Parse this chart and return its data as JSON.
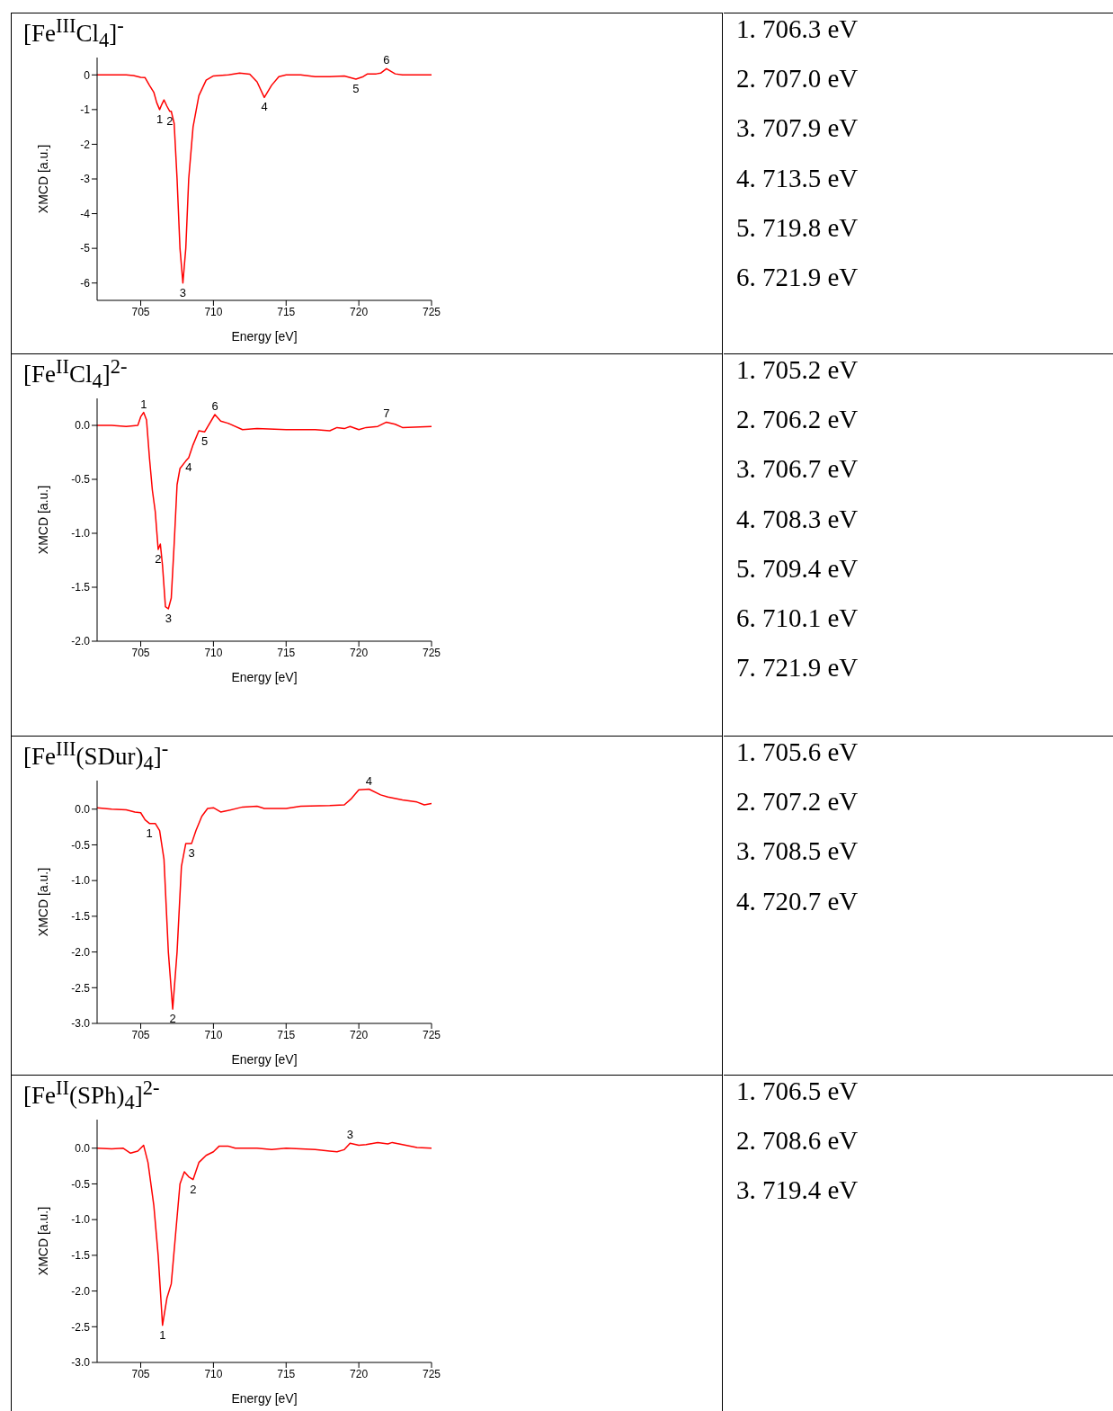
{
  "chart_data": [
    {
      "type": "line",
      "title": "[Fe$^{III}$Cl$_{4}$]$^{-}$",
      "xlabel": "Energy [eV]",
      "ylabel": "XMCD [a.u.]",
      "xlim": [
        702,
        725
      ],
      "xticks": [
        705,
        710,
        715,
        720,
        725
      ],
      "ylim": [
        -6.5,
        0.5
      ],
      "yticks": [
        0,
        -1,
        -2,
        -3,
        -4,
        -5,
        -6
      ],
      "x": [
        702,
        703,
        704,
        704.5,
        705,
        705.3,
        705.6,
        705.9,
        706.1,
        706.3,
        706.45,
        706.6,
        706.8,
        707.0,
        707.1,
        707.3,
        707.5,
        707.7,
        707.9,
        708.1,
        708.3,
        708.6,
        709,
        709.5,
        710,
        711,
        711.8,
        712.5,
        713,
        713.5,
        714,
        714.5,
        715,
        716,
        717,
        718,
        719,
        719.8,
        720.3,
        720.6,
        721.2,
        721.5,
        721.9,
        722.5,
        723,
        725
      ],
      "series": [
        {
          "color": "#ff0000",
          "values": [
            0,
            0,
            0,
            -0.02,
            -0.07,
            -0.08,
            -0.3,
            -0.5,
            -0.8,
            -1.0,
            -0.85,
            -0.72,
            -0.9,
            -1.05,
            -1.05,
            -1.4,
            -3.0,
            -5.0,
            -6.0,
            -5.0,
            -3.0,
            -1.5,
            -0.6,
            -0.15,
            -0.03,
            0,
            0.05,
            0.02,
            -0.2,
            -0.65,
            -0.3,
            -0.05,
            0,
            0,
            -0.05,
            -0.05,
            -0.03,
            -0.12,
            -0.05,
            0.03,
            0.03,
            0.05,
            0.18,
            0.03,
            0,
            0
          ]
        }
      ],
      "annotations": [
        {
          "text": "1",
          "x": 706.3,
          "y": -1.0
        },
        {
          "text": "2",
          "x": 707.0,
          "y": -1.05
        },
        {
          "text": "3",
          "x": 707.9,
          "y": -6.0
        },
        {
          "text": "4",
          "x": 713.5,
          "y": -0.65
        },
        {
          "text": "5",
          "x": 719.8,
          "y": -0.12
        },
        {
          "text": "6",
          "x": 721.9,
          "y": 0.18
        },
        "1. 706.3 eV",
        "2. 707.0 eV",
        "3. 707.9 eV",
        "4. 713.5 eV",
        "5. 719.8 eV",
        "6. 721.9 eV"
      ]
    },
    {
      "type": "line",
      "title": "[Fe$^{II}$Cl$_{4}$]$^{2-}$",
      "xlabel": "Energy [eV]",
      "ylabel": "XMCD [a.u.]",
      "xlim": [
        702,
        725
      ],
      "xticks": [
        705,
        710,
        715,
        720,
        725
      ],
      "ylim": [
        -2,
        0.25
      ],
      "yticks": [
        {
          "value": 0,
          "label": "0.0"
        },
        {
          "value": -0.5,
          "label": "-0.5"
        },
        {
          "value": -1,
          "label": "-1.0"
        },
        {
          "value": -1.5,
          "label": "-1.5"
        },
        {
          "value": -2,
          "label": "-2.0"
        }
      ],
      "x": [
        702,
        703,
        704,
        704.8,
        705.0,
        705.2,
        705.4,
        705.6,
        705.8,
        706.0,
        706.2,
        706.35,
        706.5,
        706.7,
        706.9,
        707.1,
        707.3,
        707.5,
        707.7,
        708.1,
        708.3,
        708.6,
        709.0,
        709.4,
        710.1,
        710.5,
        711,
        712,
        713,
        715,
        717,
        718,
        718.5,
        719,
        719.4,
        720,
        720.5,
        721.3,
        721.9,
        722.5,
        723,
        725
      ],
      "series": [
        {
          "color": "#ff0000",
          "values": [
            0,
            0,
            -0.01,
            0,
            0.08,
            0.12,
            0.05,
            -0.3,
            -0.6,
            -0.8,
            -1.15,
            -1.1,
            -1.3,
            -1.68,
            -1.7,
            -1.6,
            -1.1,
            -0.55,
            -0.4,
            -0.33,
            -0.3,
            -0.18,
            -0.05,
            -0.06,
            0.1,
            0.04,
            0.02,
            -0.04,
            -0.03,
            -0.04,
            -0.04,
            -0.05,
            -0.02,
            -0.03,
            -0.01,
            -0.04,
            -0.02,
            -0.01,
            0.03,
            0.01,
            -0.02,
            -0.01
          ]
        }
      ],
      "annotations": [
        {
          "text": "1",
          "x": 705.2,
          "y": 0.12
        },
        {
          "text": "2",
          "x": 706.2,
          "y": -1.15
        },
        {
          "text": "3",
          "x": 706.9,
          "y": -1.7
        },
        {
          "text": "4",
          "x": 708.3,
          "y": -0.3
        },
        {
          "text": "5",
          "x": 709.4,
          "y": -0.06
        },
        {
          "text": "6",
          "x": 710.1,
          "y": 0.1
        },
        {
          "text": "7",
          "x": 721.9,
          "y": 0.03
        },
        "1. 705.2 eV",
        "2. 706.2 eV",
        "3. 706.7 eV",
        "4. 708.3 eV",
        "5. 709.4 eV",
        "6. 710.1 eV",
        "7. 721.9 eV"
      ]
    },
    {
      "type": "line",
      "title": "[Fe$^{III}$(SDur)$_{4}$]$^{-}$",
      "xlabel": "Energy [eV]",
      "ylabel": "XMCD [a.u.]",
      "xlim": [
        702,
        725
      ],
      "xticks": [
        705,
        710,
        715,
        720,
        725
      ],
      "ylim": [
        -3,
        0.4
      ],
      "yticks": [
        {
          "value": 0,
          "label": "0.0"
        },
        {
          "value": -0.5,
          "label": "-0.5"
        },
        {
          "value": -1,
          "label": "-1.0"
        },
        {
          "value": -1.5,
          "label": "-1.5"
        },
        {
          "value": -2,
          "label": "-2.0"
        },
        {
          "value": -2.5,
          "label": "-2.5"
        },
        {
          "value": -3,
          "label": "-3.0"
        }
      ],
      "x": [
        702,
        703,
        704,
        704.6,
        705,
        705.3,
        705.6,
        706,
        706.3,
        706.6,
        706.9,
        707.2,
        707.5,
        707.8,
        708.1,
        708.5,
        708.8,
        709.2,
        709.6,
        710,
        710.5,
        711,
        712,
        713,
        713.5,
        715,
        716,
        718,
        719,
        719.5,
        720,
        720.7,
        721.5,
        722,
        723,
        724,
        724.5,
        725
      ],
      "series": [
        {
          "color": "#ff0000",
          "values": [
            0.02,
            0,
            -0.01,
            -0.04,
            -0.05,
            -0.15,
            -0.2,
            -0.2,
            -0.3,
            -0.7,
            -2.0,
            -2.8,
            -2.0,
            -0.8,
            -0.48,
            -0.48,
            -0.3,
            -0.1,
            0.01,
            0.02,
            -0.04,
            -0.02,
            0.03,
            0.04,
            0.01,
            0.01,
            0.04,
            0.05,
            0.06,
            0.15,
            0.27,
            0.28,
            0.2,
            0.17,
            0.13,
            0.1,
            0.06,
            0.08
          ]
        }
      ],
      "annotations": [
        {
          "text": "1",
          "x": 705.6,
          "y": -0.2
        },
        {
          "text": "2",
          "x": 707.2,
          "y": -2.8
        },
        {
          "text": "3",
          "x": 708.5,
          "y": -0.48
        },
        {
          "text": "4",
          "x": 720.7,
          "y": 0.28
        },
        "1. 705.6 eV",
        "2. 707.2 eV",
        "3. 708.5 eV",
        "4. 720.7 eV"
      ]
    },
    {
      "type": "line",
      "title": "[Fe$^{II}$(SPh)$_{4}$]$^{2-}$",
      "xlabel": "Energy [eV]",
      "ylabel": "XMCD [a.u.]",
      "xlim": [
        702,
        725
      ],
      "xticks": [
        705,
        710,
        715,
        720,
        725
      ],
      "ylim": [
        -3,
        0.4
      ],
      "yticks": [
        {
          "value": 0,
          "label": "0.0"
        },
        {
          "value": -0.5,
          "label": "-0.5"
        },
        {
          "value": -1,
          "label": "-1.0"
        },
        {
          "value": -1.5,
          "label": "-1.5"
        },
        {
          "value": -2,
          "label": "-2.0"
        },
        {
          "value": -2.5,
          "label": "-2.5"
        },
        {
          "value": -3,
          "label": "-3.0"
        }
      ],
      "x": [
        702,
        703,
        703.8,
        704.3,
        704.8,
        705.2,
        705.5,
        705.9,
        706.2,
        706.5,
        706.8,
        707.1,
        707.4,
        707.7,
        708.0,
        708.3,
        708.6,
        709,
        709.5,
        710,
        710.4,
        711,
        711.5,
        713,
        714,
        715,
        716,
        717,
        718,
        718.5,
        719,
        719.4,
        720,
        720.5,
        721.3,
        722,
        722.3,
        723,
        724,
        725
      ],
      "series": [
        {
          "color": "#ff0000",
          "values": [
            0,
            -0.01,
            0,
            -0.07,
            -0.04,
            0.04,
            -0.2,
            -0.8,
            -1.5,
            -2.48,
            -2.1,
            -1.9,
            -1.2,
            -0.5,
            -0.33,
            -0.4,
            -0.44,
            -0.2,
            -0.1,
            -0.05,
            0.03,
            0.03,
            0,
            0,
            -0.02,
            0,
            -0.01,
            -0.02,
            -0.04,
            -0.05,
            -0.02,
            0.07,
            0.04,
            0.05,
            0.08,
            0.06,
            0.08,
            0.05,
            0.01,
            0
          ]
        }
      ],
      "annotations": [
        {
          "text": "1",
          "x": 706.5,
          "y": -2.48
        },
        {
          "text": "2",
          "x": 708.6,
          "y": -0.44
        },
        {
          "text": "3",
          "x": 719.4,
          "y": 0.07
        },
        "1. 706.5 eV",
        "2. 708.6 eV",
        "3. 719.4 eV"
      ]
    }
  ]
}
